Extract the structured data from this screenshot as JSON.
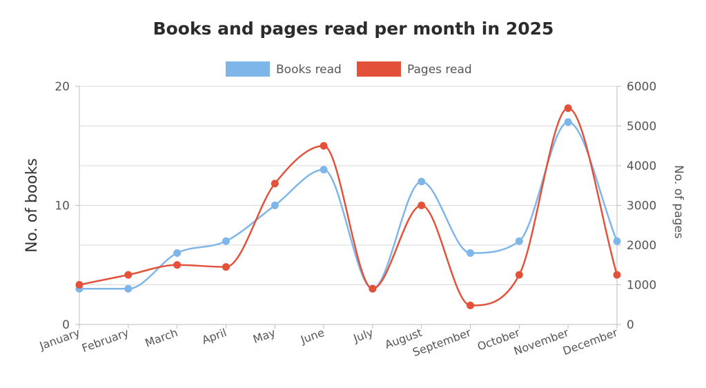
{
  "chart_data": {
    "type": "line",
    "title": "Books and pages read per month in 2025",
    "categories": [
      "January",
      "February",
      "March",
      "April",
      "May",
      "June",
      "July",
      "August",
      "September",
      "October",
      "November",
      "December"
    ],
    "series": [
      {
        "name": "Books read",
        "axis": "left",
        "color": "#7eb6ea",
        "values": [
          3,
          3,
          6,
          7,
          10,
          13,
          3,
          12,
          6,
          7,
          17,
          7
        ]
      },
      {
        "name": "Pages read",
        "axis": "right",
        "color": "#e4513a",
        "values": [
          1000,
          1250,
          1500,
          1450,
          3550,
          4500,
          900,
          3000,
          480,
          1250,
          5450,
          1250
        ]
      }
    ],
    "y_left": {
      "label": "No. of books",
      "ylim": [
        0,
        20
      ],
      "ticks": [
        0,
        10,
        20
      ]
    },
    "y_right": {
      "label": "No. of pages",
      "ylim": [
        0,
        6000
      ],
      "ticks": [
        0,
        1000,
        2000,
        3000,
        4000,
        5000,
        6000
      ]
    },
    "grid": true,
    "legend": "top-center",
    "smooth": true
  }
}
